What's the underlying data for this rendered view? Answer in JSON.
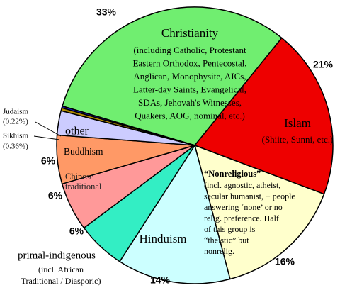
{
  "chart_data": {
    "type": "pie",
    "categories": [
      "Christianity",
      "Islam",
      "“Nonreligious”",
      "Hinduism",
      "primal-indigenous",
      "Chinese traditional",
      "Buddhism",
      "other",
      "Sikhism",
      "Judaism"
    ],
    "values": [
      33,
      21,
      16,
      14,
      6,
      6,
      6,
      3,
      0.36,
      0.22
    ],
    "value_labels": [
      "33%",
      "21%",
      "16%",
      "14%",
      "6%",
      "6%",
      "6%",
      null,
      "(0.36%)",
      "(0.22%)"
    ],
    "colors": [
      "#70ee70",
      "#ee0000",
      "#ffffcc",
      "#ccffff",
      "#33eec4",
      "#ff9999",
      "#ff9966",
      "#ccccff",
      "#b08a00",
      "#1a1acc"
    ],
    "notes": [
      [
        "(including Catholic, Protestant",
        "Eastern Orthodox, Pentecostal,",
        "Anglican, Monophysite, AICs,",
        "Latter-day Saints, Evangelical,",
        "SDAs, Jehovah's Witnesses,",
        "Quakers, AOG, nominal, etc.)"
      ],
      [
        "(Shiite, Sunni, etc.)"
      ],
      [
        "(incl. agnostic, atheist,",
        "secular humanist, + people",
        "answering ‘none’ or no",
        "relig. preference. Half",
        "of this group is",
        "“theistic” but",
        "nonrelig."
      ],
      [],
      [
        "(incl. African",
        "Traditional / Diasporic)"
      ],
      [],
      [],
      [],
      [],
      []
    ]
  }
}
